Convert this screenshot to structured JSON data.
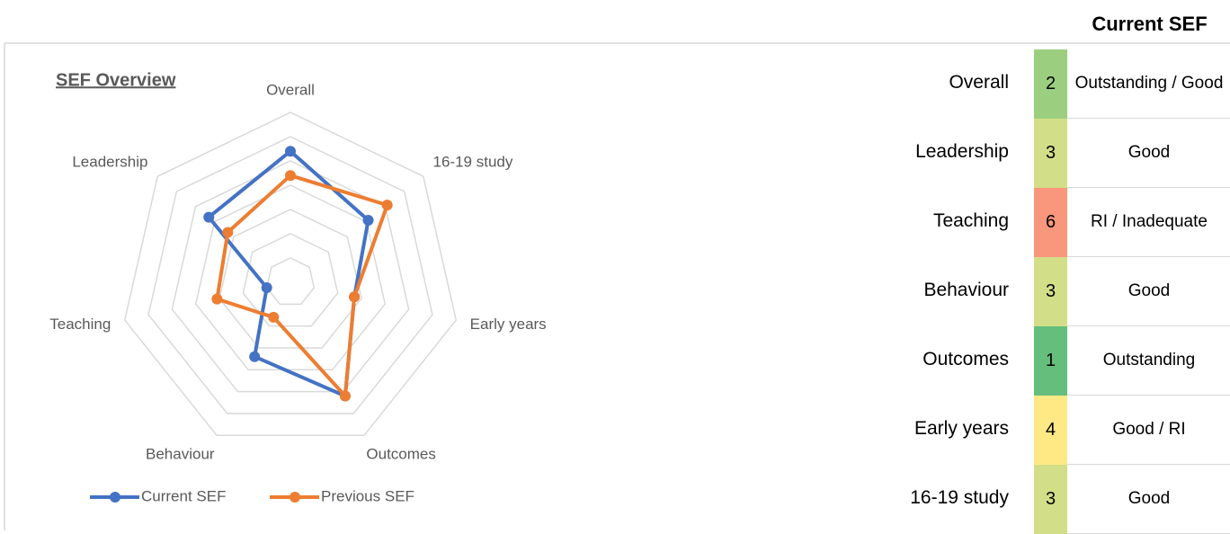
{
  "chart_data": {
    "type": "radar",
    "title": "SEF Overview",
    "categories": [
      "Overall",
      "16-19 study",
      "Early years",
      "Outcomes",
      "Behaviour",
      "Teaching",
      "Leadership"
    ],
    "series": [
      {
        "name": "Current SEF",
        "color": "#4472c4",
        "values": [
          5.4,
          4.1,
          2.7,
          5.2,
          3.4,
          1.0,
          4.3
        ]
      },
      {
        "name": "Previous SEF",
        "color": "#ed7d31",
        "values": [
          4.4,
          5.1,
          2.7,
          5.2,
          1.6,
          3.1,
          3.3
        ]
      }
    ],
    "rlim": [
      0,
      7
    ],
    "rticks": [
      1,
      2,
      3,
      4,
      5,
      6,
      7
    ],
    "grid": true,
    "legend": "bottom"
  },
  "table": {
    "title": "Current SEF",
    "rows": [
      [
        "Overall",
        2,
        "Outstanding / Good",
        "#9bcf7f"
      ],
      [
        "Leadership",
        3,
        "Good",
        "#d3df88"
      ],
      [
        "Teaching",
        6,
        "RI / Inadequate",
        "#f8977b"
      ],
      [
        "Behaviour",
        3,
        "Good",
        "#d3df88"
      ],
      [
        "Outcomes",
        1,
        "Outstanding",
        "#65be7c"
      ],
      [
        "Early years",
        4,
        "Good / RI",
        "#ffe985"
      ],
      [
        "16-19 study",
        3,
        "Good",
        "#d3df88"
      ]
    ]
  }
}
